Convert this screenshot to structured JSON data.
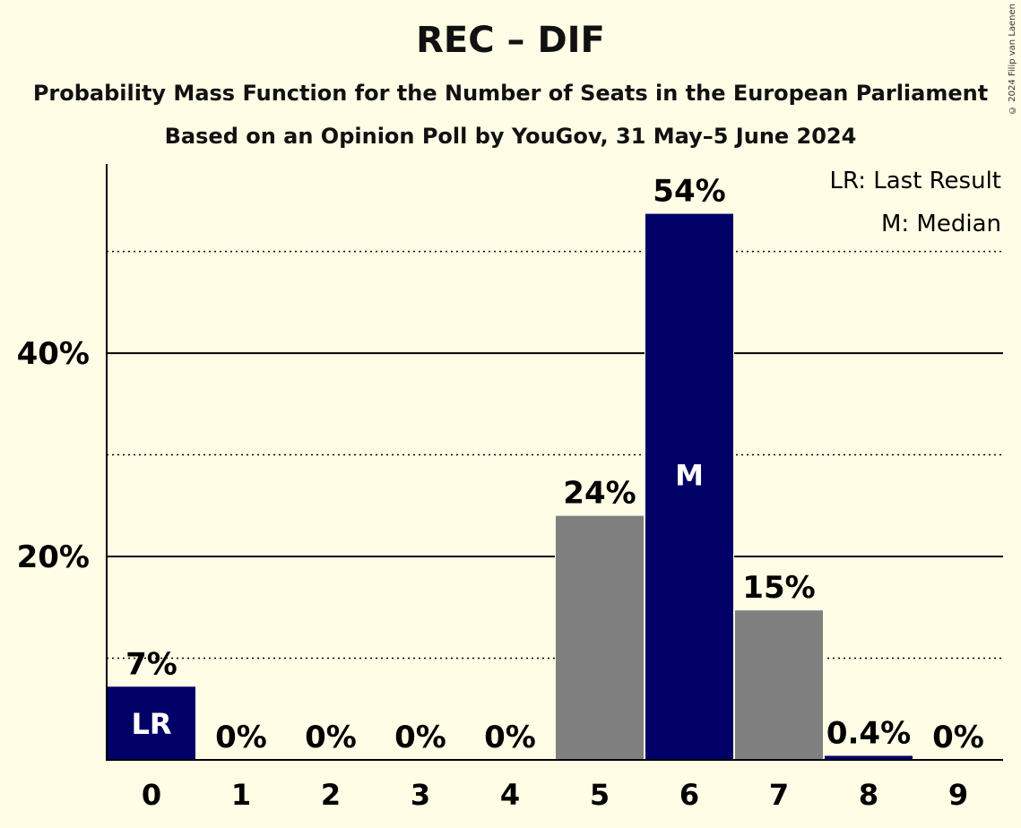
{
  "title": "REC – DIF",
  "subtitle1": "Probability Mass Function for the Number of Seats in the European Parliament",
  "subtitle2": "Based on an Opinion Poll by YouGov, 31 May–5 June 2024",
  "copyright": "© 2024 Filip van Laenen",
  "legend": {
    "last_result": "LR: Last Result",
    "median": "M: Median"
  },
  "colors": {
    "background": "#fffde6",
    "highlight": "#000066",
    "default": "#7f7f7f"
  },
  "chart_data": {
    "type": "bar",
    "categories": [
      "0",
      "1",
      "2",
      "3",
      "4",
      "5",
      "6",
      "7",
      "8",
      "9"
    ],
    "values": [
      7.2,
      0,
      0,
      0,
      0,
      24,
      53.7,
      14.7,
      0.4,
      0
    ],
    "labels": [
      "7%",
      "0%",
      "0%",
      "0%",
      "0%",
      "24%",
      "54%",
      "15%",
      "0.4%",
      "0%"
    ],
    "bar_markers": [
      "LR",
      "",
      "",
      "",
      "",
      "",
      "M",
      "",
      "",
      ""
    ],
    "highlight": [
      true,
      false,
      false,
      false,
      false,
      false,
      true,
      false,
      true,
      false
    ],
    "ylim": [
      0,
      58.6
    ],
    "yticks": [
      20,
      40
    ],
    "ytick_labels": [
      "20%",
      "40%"
    ],
    "minor_gridlines": [
      10,
      30,
      50
    ],
    "xlabel": "",
    "ylabel": ""
  }
}
